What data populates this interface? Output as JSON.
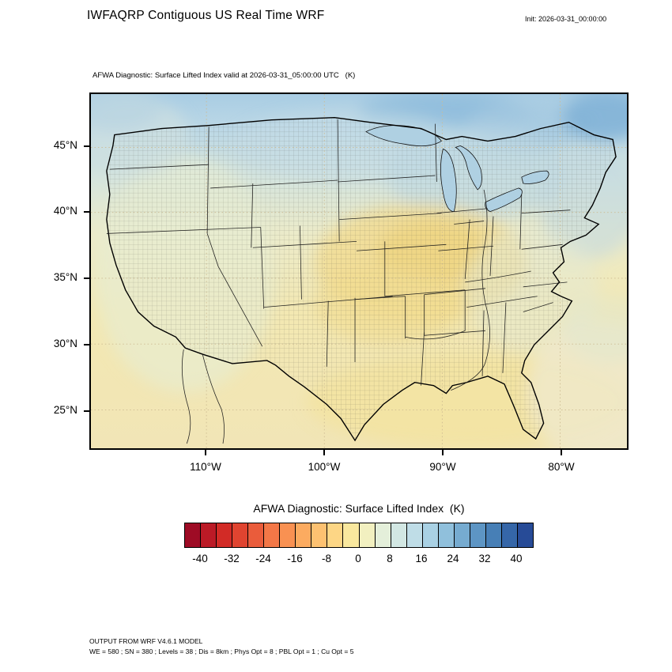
{
  "header": {
    "title": "IWFAQRP Contiguous US Real Time WRF",
    "init": "Init: 2026-03-31_00:00:00"
  },
  "map": {
    "subtitle": "AFWA Diagnostic: Surface Lifted Index valid at 2026-03-31_05:00:00 UTC   (K)",
    "lat_labels": [
      "45°N",
      "40°N",
      "35°N",
      "30°N",
      "25°N"
    ],
    "lon_labels": [
      "110°W",
      "100°W",
      "90°W",
      "80°W"
    ]
  },
  "colorbar": {
    "title": "AFWA Diagnostic: Surface Lifted Index  (K)",
    "ticks": [
      "-40",
      "-32",
      "-24",
      "-16",
      "-8",
      "0",
      "8",
      "16",
      "24",
      "32",
      "40"
    ],
    "colors": [
      "#9e0b25",
      "#bb1a26",
      "#d22b26",
      "#e04430",
      "#ea5c3b",
      "#f37747",
      "#f99152",
      "#fcab60",
      "#fdc171",
      "#fdd685",
      "#f9e89e",
      "#f2f0c0",
      "#e4efda",
      "#d2e7e3",
      "#bfdde7",
      "#a9d1e4",
      "#90c0dc",
      "#76abd0",
      "#5d95c4",
      "#477fb6",
      "#3566a8",
      "#274b97"
    ]
  },
  "footer": {
    "line1": "OUTPUT FROM WRF V4.6.1 MODEL",
    "line2": "WE = 580 ; SN = 380 ; Levels = 38 ; Dis = 8km ; Phys Opt = 8 ; PBL Opt = 1 ; Cu Opt = 5"
  }
}
